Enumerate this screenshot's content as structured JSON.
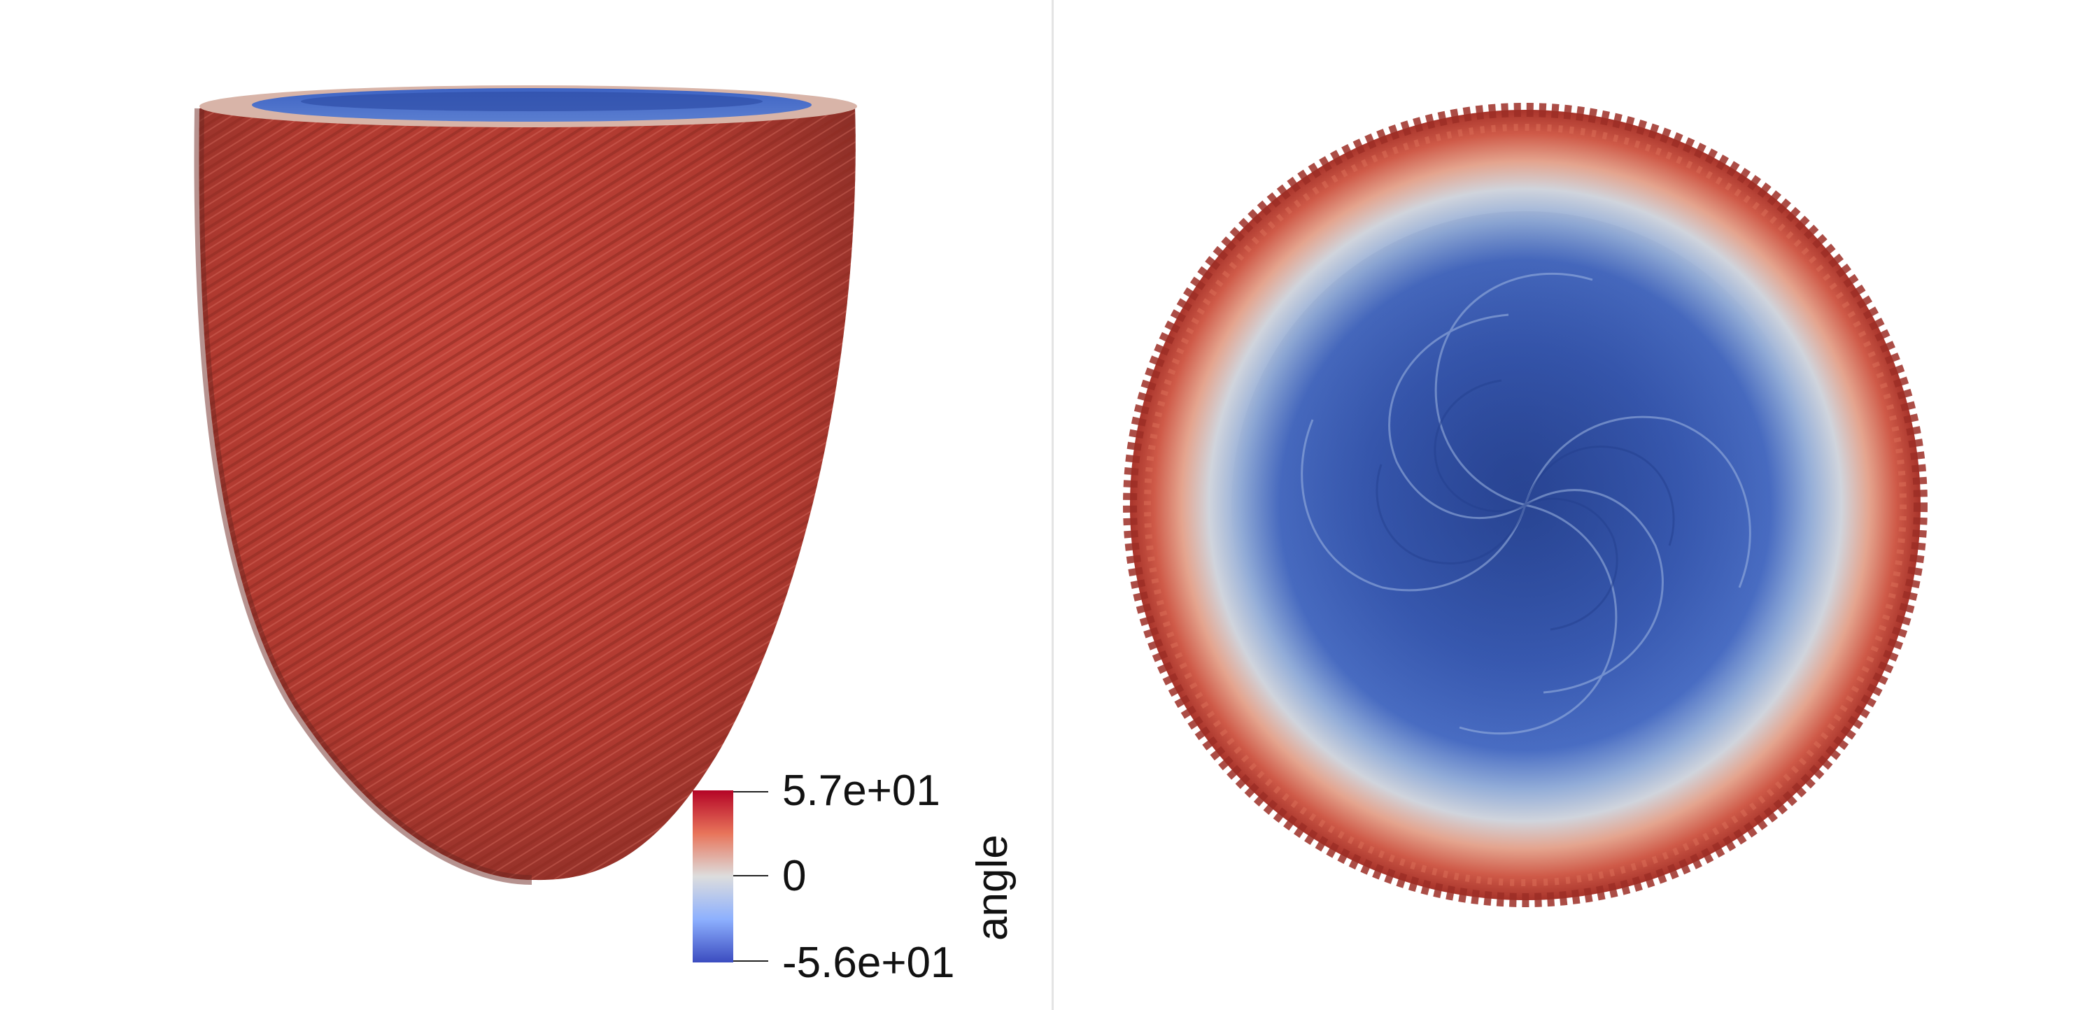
{
  "views": {
    "left": {
      "name": "side-view",
      "object": "ventricle-fiber-render"
    },
    "right": {
      "name": "top-view",
      "object": "ventricle-fiber-render"
    }
  },
  "colorbar": {
    "title": "angle",
    "max_label": "5.7e+01",
    "mid_label": "0",
    "min_label": "-5.6e+01",
    "max": 57,
    "min": -56,
    "colors": {
      "high": "#b40426",
      "mid": "#dddddd",
      "low": "#3b4cc0"
    }
  },
  "colors": {
    "background": "#ffffff",
    "fiber_red": "#b73a2f",
    "fiber_dark_red": "#7f2a22",
    "fiber_blue": "#3d5fb8",
    "fiber_light_blue": "#a9bfe0"
  }
}
